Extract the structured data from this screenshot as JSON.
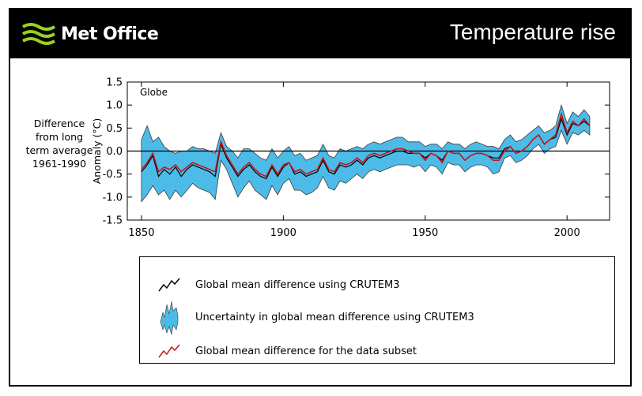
{
  "header": {
    "brand": "Met Office",
    "title": "Temperature rise"
  },
  "side_label": {
    "lines": [
      "Difference",
      "from long",
      "term average",
      "1961-1990"
    ]
  },
  "colors": {
    "band": "#4dbbe8",
    "band_edge": "#3a3a3a",
    "subset_line": "#c0181b",
    "crutem_line": "#000000",
    "logo_green": "#9ad11e"
  },
  "chart_data": {
    "type": "line",
    "panel_label": "Globe",
    "ylabel": "Anomaly (°C)",
    "xlabel": "",
    "xlim": [
      1845,
      2015
    ],
    "ylim": [
      -1.5,
      1.5
    ],
    "x_ticks": [
      1850,
      1900,
      1950,
      2000
    ],
    "y_ticks": [
      "1.5",
      "1.0",
      "0.5",
      "0.0",
      "-0.5",
      "-1.0",
      "-1.5"
    ],
    "y_tick_values": [
      1.5,
      1.0,
      0.5,
      0.0,
      -0.5,
      -1.0,
      -1.5
    ],
    "zero_line": true,
    "years": [
      1850,
      1852,
      1854,
      1856,
      1858,
      1860,
      1862,
      1864,
      1866,
      1868,
      1870,
      1872,
      1874,
      1876,
      1878,
      1880,
      1882,
      1884,
      1886,
      1888,
      1890,
      1892,
      1894,
      1896,
      1898,
      1900,
      1902,
      1904,
      1906,
      1908,
      1910,
      1912,
      1914,
      1916,
      1918,
      1920,
      1922,
      1924,
      1926,
      1928,
      1930,
      1932,
      1934,
      1936,
      1938,
      1940,
      1942,
      1944,
      1946,
      1948,
      1950,
      1952,
      1954,
      1956,
      1958,
      1960,
      1962,
      1964,
      1966,
      1968,
      1970,
      1972,
      1974,
      1976,
      1978,
      1980,
      1982,
      1984,
      1986,
      1988,
      1990,
      1992,
      1994,
      1996,
      1998,
      2000,
      2002,
      2004,
      2006,
      2008
    ],
    "series": [
      {
        "name": "Global mean difference using CRUTEM3",
        "values": [
          -0.45,
          -0.3,
          -0.1,
          -0.55,
          -0.4,
          -0.5,
          -0.35,
          -0.55,
          -0.4,
          -0.3,
          -0.35,
          -0.4,
          -0.45,
          -0.55,
          0.15,
          -0.15,
          -0.35,
          -0.55,
          -0.4,
          -0.3,
          -0.45,
          -0.55,
          -0.6,
          -0.35,
          -0.55,
          -0.35,
          -0.25,
          -0.5,
          -0.45,
          -0.55,
          -0.5,
          -0.45,
          -0.2,
          -0.45,
          -0.5,
          -0.3,
          -0.35,
          -0.3,
          -0.2,
          -0.3,
          -0.15,
          -0.1,
          -0.15,
          -0.1,
          -0.05,
          0.0,
          0.0,
          -0.05,
          -0.05,
          -0.05,
          -0.15,
          -0.05,
          -0.1,
          -0.2,
          0.0,
          -0.05,
          -0.05,
          -0.2,
          -0.1,
          -0.05,
          -0.05,
          -0.1,
          -0.15,
          -0.15,
          0.05,
          0.1,
          -0.05,
          0.0,
          0.1,
          0.25,
          0.35,
          0.15,
          0.25,
          0.3,
          0.7,
          0.35,
          0.6,
          0.55,
          0.65,
          0.55
        ]
      },
      {
        "name": "Global mean difference for the data subset",
        "values": [
          -0.4,
          -0.25,
          -0.05,
          -0.45,
          -0.35,
          -0.4,
          -0.3,
          -0.45,
          -0.35,
          -0.25,
          -0.3,
          -0.35,
          -0.4,
          -0.45,
          0.2,
          -0.1,
          -0.3,
          -0.5,
          -0.35,
          -0.25,
          -0.4,
          -0.5,
          -0.55,
          -0.3,
          -0.5,
          -0.3,
          -0.25,
          -0.45,
          -0.4,
          -0.5,
          -0.45,
          -0.4,
          -0.15,
          -0.4,
          -0.45,
          -0.25,
          -0.3,
          -0.25,
          -0.15,
          -0.25,
          -0.1,
          -0.05,
          -0.1,
          -0.05,
          0.0,
          0.05,
          0.05,
          0.0,
          -0.05,
          -0.05,
          -0.2,
          -0.05,
          -0.1,
          -0.25,
          0.0,
          -0.05,
          -0.05,
          -0.2,
          -0.1,
          -0.05,
          -0.05,
          -0.1,
          -0.2,
          -0.2,
          0.0,
          0.1,
          -0.05,
          0.0,
          0.1,
          0.25,
          0.35,
          0.15,
          0.25,
          0.35,
          0.8,
          0.4,
          0.65,
          0.55,
          0.7,
          0.55
        ]
      }
    ],
    "uncertainty": {
      "name": "Uncertainty in global mean difference using CRUTEM3",
      "upper": [
        0.25,
        0.55,
        0.2,
        0.3,
        0.1,
        0.0,
        -0.05,
        0.0,
        0.0,
        0.1,
        0.05,
        0.05,
        0.0,
        -0.05,
        0.4,
        0.1,
        0.0,
        -0.15,
        0.05,
        0.05,
        -0.05,
        -0.15,
        -0.2,
        0.05,
        -0.15,
        0.0,
        0.1,
        -0.1,
        -0.05,
        -0.2,
        -0.15,
        -0.1,
        0.15,
        -0.1,
        -0.15,
        0.05,
        0.0,
        0.05,
        0.1,
        0.05,
        0.15,
        0.2,
        0.15,
        0.2,
        0.25,
        0.3,
        0.3,
        0.2,
        0.2,
        0.2,
        0.1,
        0.15,
        0.15,
        0.05,
        0.2,
        0.15,
        0.15,
        0.05,
        0.15,
        0.2,
        0.15,
        0.1,
        0.1,
        0.05,
        0.25,
        0.35,
        0.2,
        0.25,
        0.35,
        0.45,
        0.55,
        0.4,
        0.45,
        0.55,
        1.0,
        0.6,
        0.85,
        0.75,
        0.9,
        0.75
      ],
      "lower": [
        -1.1,
        -0.95,
        -0.75,
        -0.95,
        -0.85,
        -1.05,
        -0.85,
        -1.0,
        -0.85,
        -0.7,
        -0.8,
        -0.85,
        -0.9,
        -1.05,
        -0.2,
        -0.4,
        -0.7,
        -1.0,
        -0.8,
        -0.65,
        -0.85,
        -0.95,
        -1.05,
        -0.75,
        -0.95,
        -0.7,
        -0.6,
        -0.85,
        -0.85,
        -0.95,
        -0.9,
        -0.8,
        -0.55,
        -0.8,
        -0.85,
        -0.65,
        -0.7,
        -0.6,
        -0.5,
        -0.6,
        -0.45,
        -0.4,
        -0.45,
        -0.4,
        -0.35,
        -0.3,
        -0.3,
        -0.3,
        -0.35,
        -0.3,
        -0.45,
        -0.3,
        -0.35,
        -0.5,
        -0.25,
        -0.3,
        -0.3,
        -0.45,
        -0.35,
        -0.3,
        -0.3,
        -0.35,
        -0.5,
        -0.45,
        -0.15,
        -0.1,
        -0.25,
        -0.2,
        -0.1,
        0.05,
        0.15,
        -0.05,
        0.05,
        0.1,
        0.45,
        0.15,
        0.4,
        0.35,
        0.45,
        0.35
      ]
    }
  },
  "legend": {
    "items": [
      {
        "label": "Global mean difference using CRUTEM3"
      },
      {
        "label": "Uncertainty in global mean difference using CRUTEM3"
      },
      {
        "label": "Global mean difference for the data subset"
      }
    ]
  }
}
